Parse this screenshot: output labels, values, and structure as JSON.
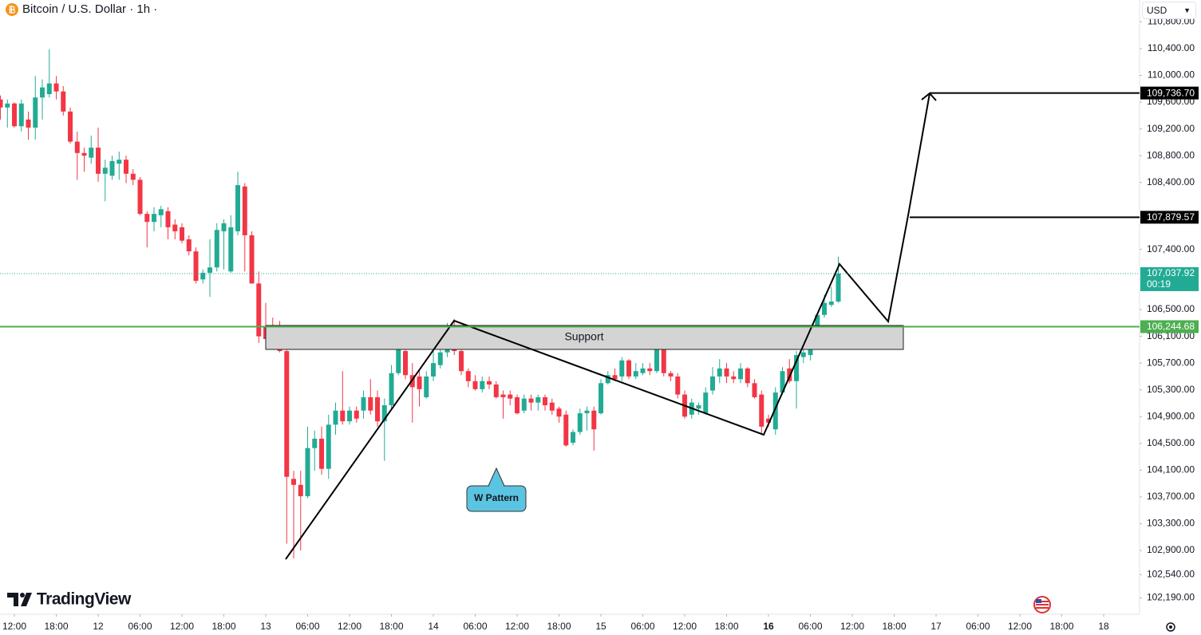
{
  "chart_data": {
    "type": "candlestick",
    "title": "Bitcoin / U.S. Dollar · 1h ·",
    "currency": "USD",
    "brand": "TradingView",
    "annotations": [
      "Support",
      "W Pattern"
    ],
    "up_color": "#22ab94",
    "down_color": "#f23645",
    "open": [
      109640,
      109520,
      109580,
      109240,
      109340,
      109220,
      109670,
      109720,
      109880,
      109760,
      109460,
      109010,
      108840,
      108770,
      108920,
      108530,
      108500,
      108680,
      108740,
      108530,
      108440,
      107930,
      107810,
      107910,
      107970,
      107770,
      107730,
      107550,
      107370,
      106950,
      107050,
      107130,
      107670,
      107070,
      107670,
      108340,
      107610,
      106890,
      106240,
      106120,
      106060,
      105880,
      103970,
      103880,
      103710,
      104430,
      104570,
      104120,
      104780,
      104990,
      104830,
      104990,
      104990,
      105190,
      105190,
      104830,
      105070,
      105550,
      105880,
      105520,
      105500,
      105190,
      105500,
      105670,
      105860,
      106140,
      105880,
      105580,
      105430,
      105310,
      105430,
      105380,
      105230,
      105230,
      105190,
      104990,
      105170,
      105110,
      105190,
      105110,
      105020,
      104930,
      104510,
      104670,
      104950,
      104990,
      104950,
      105400,
      105520,
      105500,
      105740,
      105500,
      105550,
      105620,
      105580,
      106180,
      105550,
      105500,
      105230,
      104930,
      105020,
      104950,
      105290,
      105500,
      105620,
      105500,
      105460,
      105620,
      105400,
      105230,
      104870,
      104710,
      105260,
      105620,
      105430,
      105790,
      105820,
      105940,
      106420,
      106570,
      106620
    ],
    "high": [
      109700,
      109640,
      109600,
      109640,
      109460,
      109990,
      109940,
      110390,
      109990,
      109840,
      109520,
      109160,
      108920,
      109100,
      109220,
      108740,
      108800,
      108860,
      108800,
      108600,
      108480,
      107970,
      108030,
      108050,
      108030,
      107850,
      107790,
      107610,
      107430,
      107100,
      107550,
      107790,
      107850,
      107910,
      108560,
      108390,
      107670,
      107070,
      106600,
      106380,
      106330,
      105940,
      104090,
      104090,
      104750,
      104690,
      104750,
      104930,
      105110,
      105580,
      105050,
      105050,
      105290,
      105460,
      105290,
      105170,
      105670,
      106100,
      105940,
      105700,
      105580,
      105580,
      105880,
      105940,
      106300,
      106360,
      105940,
      105620,
      105520,
      105500,
      105500,
      105430,
      105290,
      105290,
      105230,
      105230,
      105230,
      105230,
      105230,
      105170,
      105050,
      104990,
      104710,
      105020,
      105050,
      105050,
      105460,
      105580,
      105620,
      105790,
      105760,
      105700,
      105700,
      105700,
      106240,
      106240,
      105580,
      105550,
      105290,
      105170,
      105110,
      105340,
      105640,
      105760,
      105700,
      105580,
      105700,
      105640,
      105460,
      105290,
      104930,
      105340,
      105640,
      105760,
      105880,
      105900,
      106020,
      106450,
      106720,
      106840,
      107290
    ],
    "low": [
      109340,
      109220,
      109220,
      109160,
      109040,
      109040,
      109340,
      109670,
      109640,
      109400,
      108980,
      108440,
      108560,
      108680,
      108410,
      108120,
      108440,
      108440,
      108390,
      108360,
      107910,
      107430,
      107670,
      107730,
      107550,
      107550,
      107490,
      107310,
      106890,
      106890,
      106690,
      107070,
      107100,
      107050,
      107610,
      107070,
      106890,
      106000,
      105900,
      105980,
      105860,
      103000,
      102780,
      102900,
      103680,
      104090,
      104030,
      103970,
      104630,
      104780,
      104780,
      104810,
      104870,
      104930,
      104750,
      104240,
      104990,
      105520,
      105460,
      104810,
      105050,
      105170,
      105430,
      105620,
      105790,
      105820,
      105520,
      105340,
      105290,
      105260,
      105310,
      105170,
      104870,
      105070,
      104930,
      104950,
      104990,
      104990,
      104990,
      104930,
      104810,
      104450,
      104470,
      104630,
      104690,
      104390,
      104930,
      105380,
      105430,
      105430,
      105460,
      105460,
      105520,
      105520,
      105550,
      105500,
      105430,
      105170,
      104870,
      104870,
      104930,
      104930,
      105230,
      105400,
      105400,
      105400,
      105400,
      105340,
      105170,
      104630,
      104750,
      104630,
      105230,
      105400,
      105020,
      105700,
      105740,
      105900,
      106380,
      106540,
      106600
    ],
    "close": [
      109520,
      109580,
      109240,
      109580,
      109220,
      109670,
      109820,
      109880,
      109760,
      109460,
      109010,
      108840,
      108800,
      108920,
      108530,
      108620,
      108720,
      108740,
      108530,
      108440,
      107930,
      107810,
      107930,
      108000,
      107730,
      107670,
      107530,
      107370,
      106930,
      107050,
      107130,
      107690,
      107790,
      107730,
      108360,
      107610,
      106890,
      106100,
      106060,
      106020,
      105880,
      104000,
      103880,
      103710,
      104430,
      104570,
      104120,
      104780,
      104990,
      104830,
      104990,
      104870,
      105190,
      104990,
      104830,
      105070,
      105550,
      105900,
      105520,
      105340,
      105310,
      105500,
      105700,
      105860,
      106140,
      105880,
      105580,
      105430,
      105310,
      105430,
      105380,
      105190,
      105190,
      105170,
      104950,
      105170,
      105110,
      105190,
      105070,
      104990,
      104900,
      104470,
      104670,
      104950,
      104990,
      104710,
      105400,
      105520,
      105460,
      105740,
      105500,
      105580,
      105620,
      105580,
      106180,
      105550,
      105500,
      105230,
      104900,
      105110,
      105070,
      105260,
      105500,
      105620,
      105500,
      105460,
      105620,
      105400,
      105190,
      104750,
      104810,
      105260,
      105580,
      105430,
      105820,
      105860,
      105980,
      106420,
      106600,
      106620,
      107040
    ],
    "xlim": [
      -0.06,
      163.14
    ],
    "xticks": [
      {
        "value": 2,
        "label": "12:00"
      },
      {
        "value": 8,
        "label": "18:00"
      },
      {
        "value": 14,
        "label": "12"
      },
      {
        "value": 20,
        "label": "06:00"
      },
      {
        "value": 26,
        "label": "12:00"
      },
      {
        "value": 32,
        "label": "18:00"
      },
      {
        "value": 38,
        "label": "13"
      },
      {
        "value": 44,
        "label": "06:00"
      },
      {
        "value": 50,
        "label": "12:00"
      },
      {
        "value": 56,
        "label": "18:00"
      },
      {
        "value": 62,
        "label": "14"
      },
      {
        "value": 68,
        "label": "06:00"
      },
      {
        "value": 74,
        "label": "12:00"
      },
      {
        "value": 80,
        "label": "18:00"
      },
      {
        "value": 86,
        "label": "15"
      },
      {
        "value": 92,
        "label": "06:00"
      },
      {
        "value": 98,
        "label": "12:00"
      },
      {
        "value": 104,
        "label": "18:00"
      },
      {
        "value": 110,
        "label": "16",
        "bold": true
      },
      {
        "value": 116,
        "label": "06:00"
      },
      {
        "value": 122,
        "label": "12:00"
      },
      {
        "value": 128,
        "label": "18:00"
      },
      {
        "value": 134,
        "label": "17"
      },
      {
        "value": 140,
        "label": "06:00"
      },
      {
        "value": 146,
        "label": "12:00"
      },
      {
        "value": 152,
        "label": "18:00"
      },
      {
        "value": 158,
        "label": "18"
      }
    ],
    "ylim": [
      101946,
      111127
    ],
    "yticks": [
      {
        "value": 110800,
        "label": "110,800.00"
      },
      {
        "value": 110400,
        "label": "110,400.00"
      },
      {
        "value": 110000,
        "label": "110,000.00"
      },
      {
        "value": 109600,
        "label": "109,600.00"
      },
      {
        "value": 109200,
        "label": "109,200.00"
      },
      {
        "value": 108800,
        "label": "108,800.00"
      },
      {
        "value": 108400,
        "label": "108,400.00"
      },
      {
        "value": 107400,
        "label": "107,400.00"
      },
      {
        "value": 106500,
        "label": "106,500.00"
      },
      {
        "value": 106100,
        "label": "106,100.00"
      },
      {
        "value": 105700,
        "label": "105,700.00"
      },
      {
        "value": 105300,
        "label": "105,300.00"
      },
      {
        "value": 104900,
        "label": "104,900.00"
      },
      {
        "value": 104500,
        "label": "104,500.00"
      },
      {
        "value": 104100,
        "label": "104,100.00"
      },
      {
        "value": 103700,
        "label": "103,700.00"
      },
      {
        "value": 103300,
        "label": "103,300.00"
      },
      {
        "value": 102900,
        "label": "102,900.00"
      },
      {
        "value": 102540,
        "label": "102,540.00"
      },
      {
        "value": 102190,
        "label": "102,190.00"
      }
    ],
    "price_lines": [
      {
        "value": 106244.68,
        "label": "106,244.68",
        "color": "#4caf50"
      },
      {
        "value": 107879.57,
        "label": "107,879.57",
        "color": "#000000"
      },
      {
        "value": 109736.7,
        "label": "109,736.70",
        "color": "#000000"
      }
    ],
    "last_price": {
      "value": 107037.92,
      "label": "107,037.92",
      "countdown": "00:19",
      "color": "#22ab94"
    }
  }
}
